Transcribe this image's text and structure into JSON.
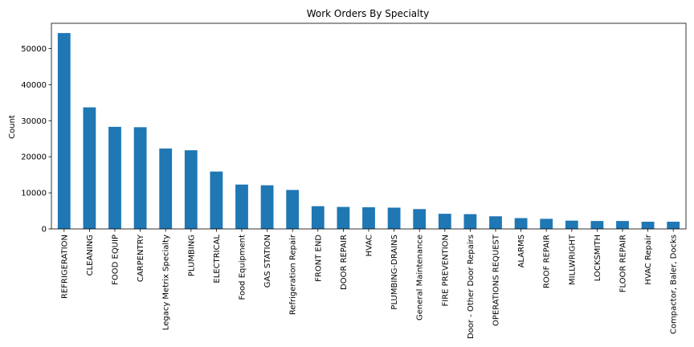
{
  "chart_data": {
    "type": "bar",
    "title": "Work Orders By Specialty",
    "xlabel": "",
    "ylabel": "Count",
    "bar_color": "#1f77b4",
    "ylim": [
      0,
      57000
    ],
    "yticks": [
      0,
      10000,
      20000,
      30000,
      40000,
      50000
    ],
    "yticks_labels": [
      "0",
      "10000",
      "20000",
      "30000",
      "40000",
      "50000"
    ],
    "grid": false,
    "legend": "none",
    "categories": [
      "REFRIGERATION",
      "CLEANING",
      "FOOD EQUIP",
      "CARPENTRY",
      "Legacy Metrix Specialty",
      "PLUMBING",
      "ELECTRICAL",
      "Food Equipment",
      "GAS STATION",
      "Refrigeration Repair",
      "FRONT END",
      "DOOR REPAIR",
      "HVAC",
      "PLUMBING-DRAINS",
      "General Maintenance",
      "FIRE PREVENTION",
      "Door - Other Door Repairs",
      "OPERATIONS REQUEST",
      "ALARMS",
      "ROOF REPAIR",
      "MILLWRIGHT",
      "LOCKSMITH",
      "FLOOR REPAIR",
      "HVAC Repair",
      "Compactor, Baler, Docks"
    ],
    "values": [
      54300,
      33700,
      28300,
      28200,
      22300,
      21800,
      15900,
      12300,
      12100,
      10800,
      6300,
      6100,
      6000,
      5900,
      5500,
      4200,
      4100,
      3500,
      3000,
      2800,
      2300,
      2200,
      2200,
      2000,
      2000
    ]
  }
}
